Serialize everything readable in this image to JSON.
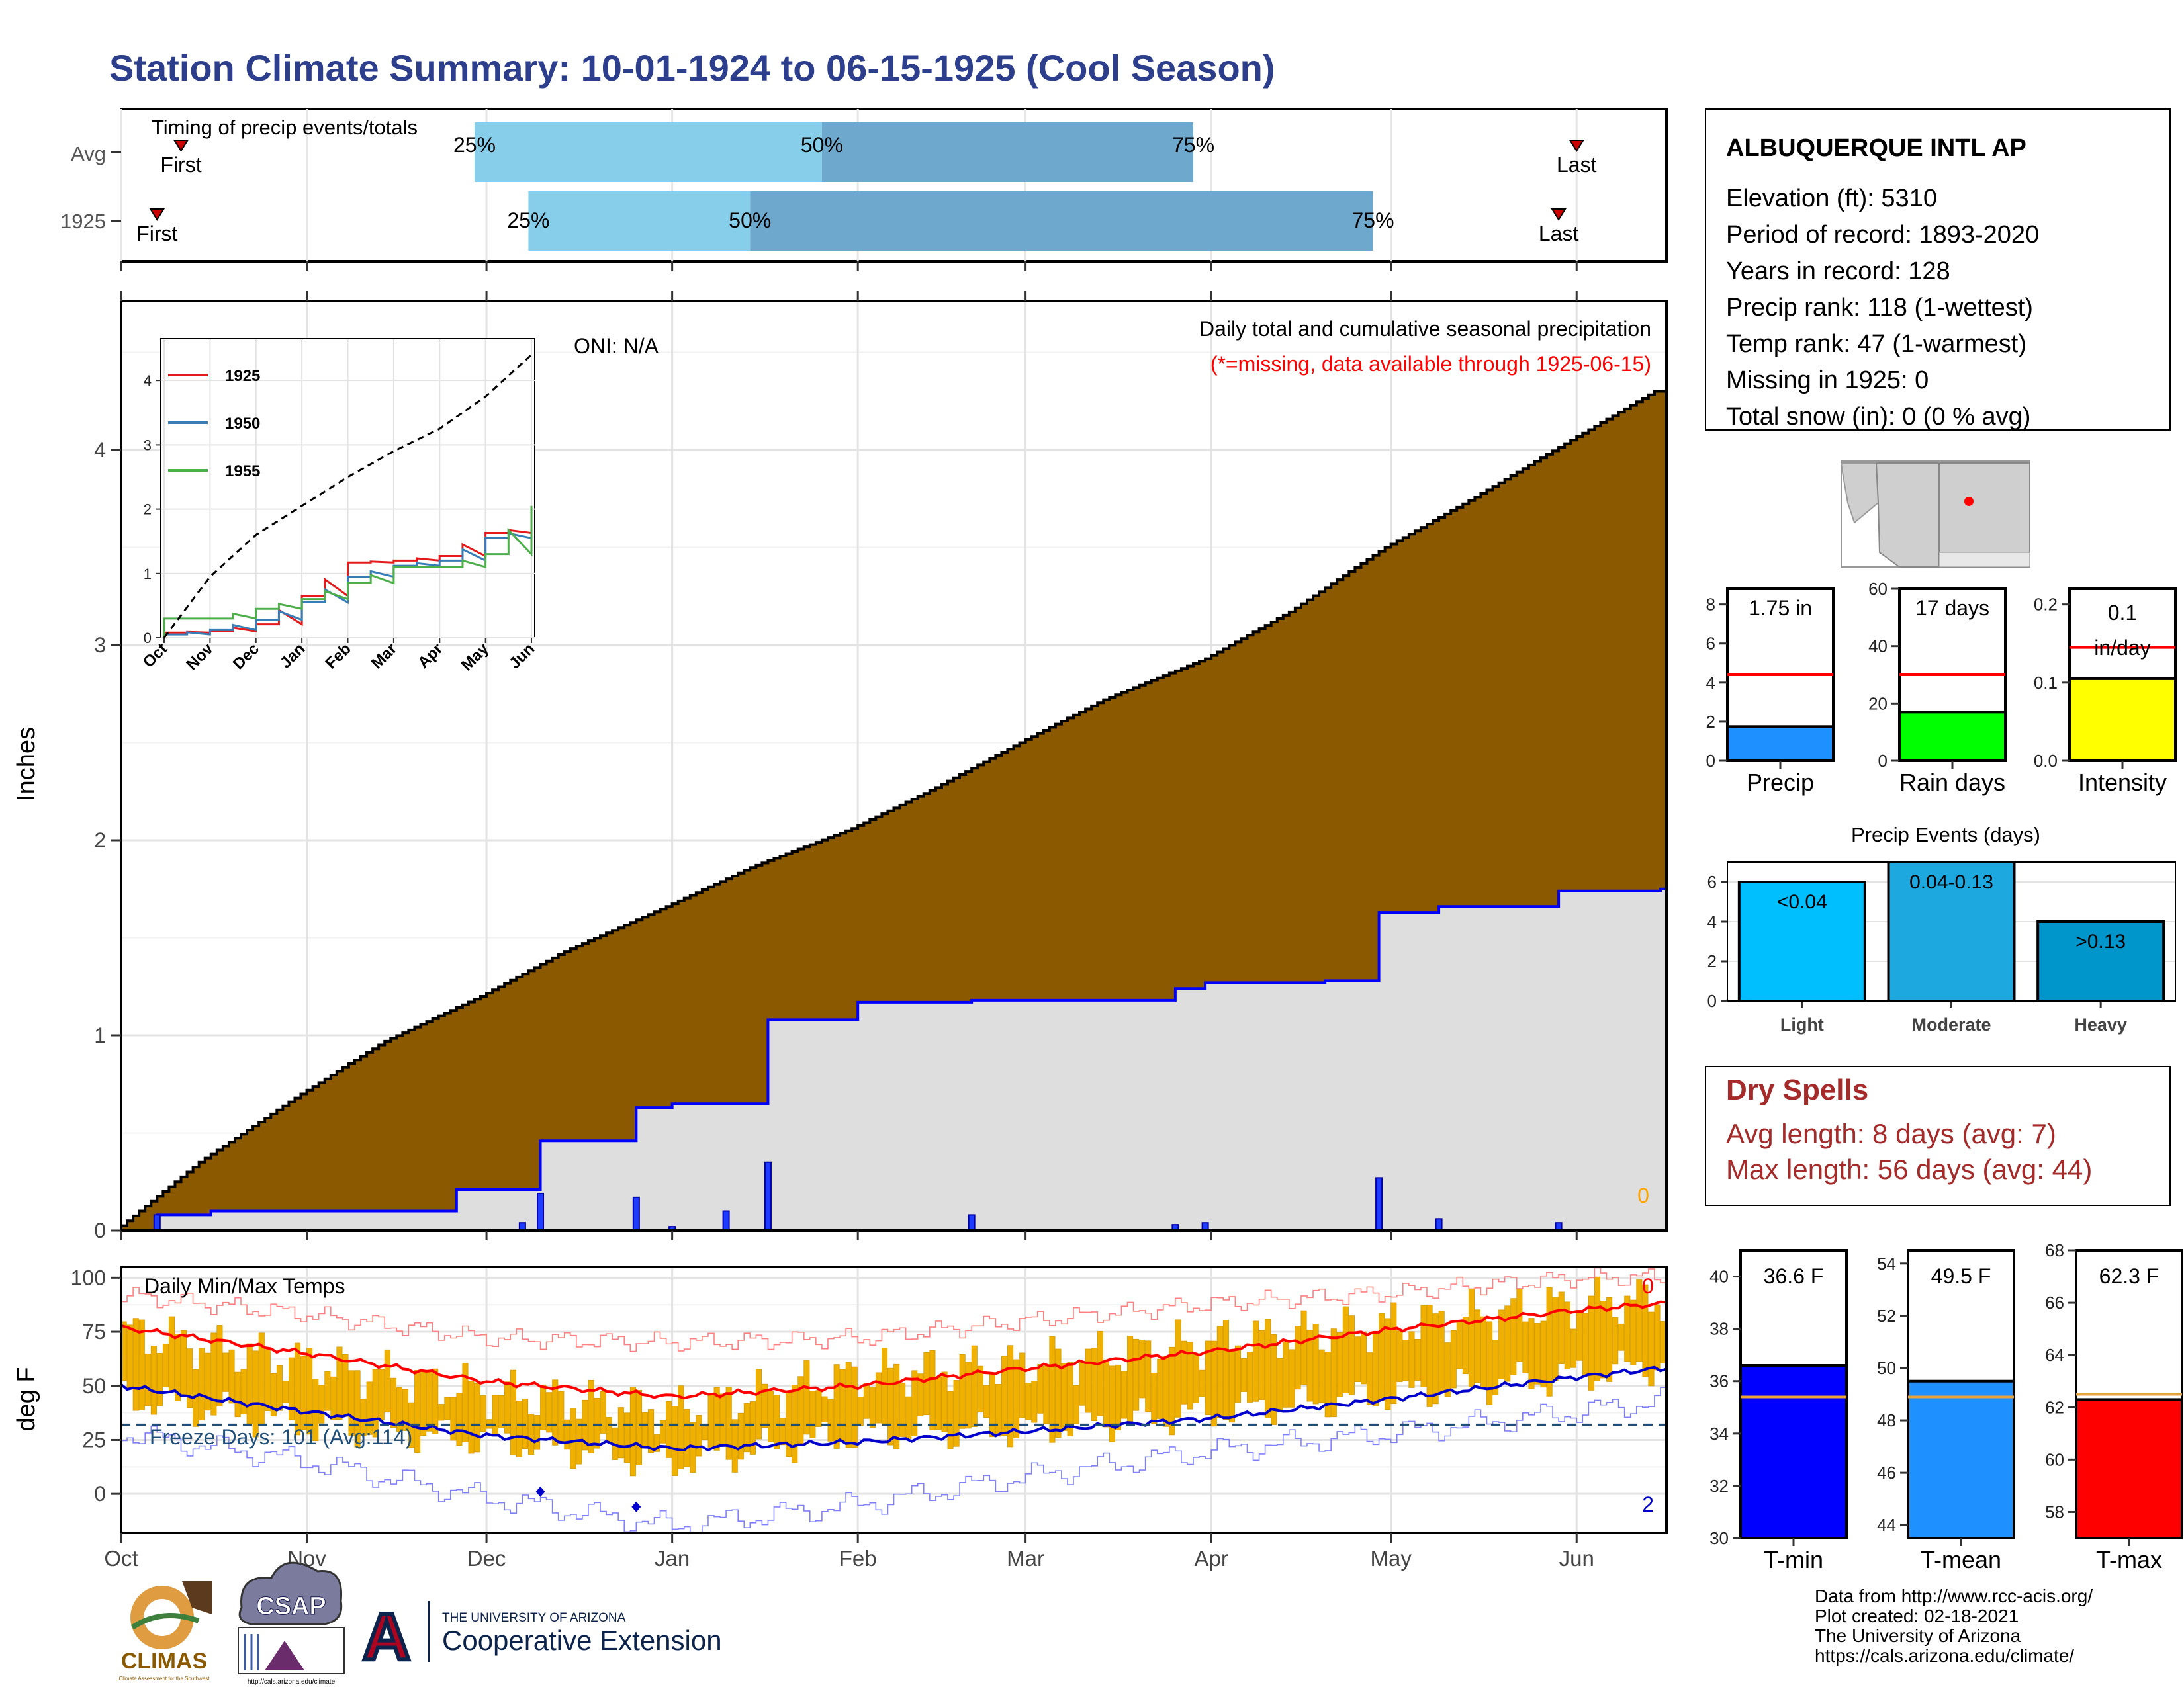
{
  "title": "Station Climate Summary: 10-01-1924 to 06-15-1925 (Cool Season)",
  "colors": {
    "title": "#2c3e8c",
    "cum_fill": "#8b5a00",
    "avg_fill": "#dedede",
    "avg_line": "#0000ff",
    "timing_light": "#87ceeb",
    "timing_dark": "#6fa8cd",
    "temp_bars": "#f0b000",
    "tmax_line": "#ff0000",
    "tmin_line": "#0000cc",
    "freeze_line": "#1f4e79",
    "dry_spells": "#a52a2a"
  },
  "timing_panel": {
    "title": "Timing of precip events/totals",
    "rows": [
      {
        "label": "Avg",
        "first_label": "First",
        "last_label": "Last",
        "q25_label": "25%",
        "q50_label": "50%",
        "q75_label": "75%"
      },
      {
        "label": "1925",
        "first_label": "First",
        "last_label": "Last",
        "q25_label": "25%",
        "q50_label": "50%",
        "q75_label": "75%"
      }
    ]
  },
  "station": {
    "name": "ALBUQUERQUE INTL AP",
    "lines": [
      "Elevation (ft): 5310",
      "Period of record: 1893-2020",
      "Years in record: 128",
      "Precip rank: 118 (1-wettest)",
      "Temp rank: 47 (1-warmest)",
      "Missing in 1925: 0",
      "Total snow (in): 0 (0 % avg)"
    ]
  },
  "precip_panel": {
    "title": "Daily total and cumulative seasonal precipitation",
    "subtitle": "(*=missing, data available through 1925-06-15)",
    "oni": "ONI: N/A",
    "ylabel": "Inches",
    "yticks": [
      "0",
      "1",
      "2",
      "3",
      "4"
    ],
    "zero_count": "0",
    "months": [
      "Oct",
      "Nov",
      "Dec",
      "Jan",
      "Feb",
      "Mar",
      "Apr",
      "May",
      "Jun"
    ]
  },
  "inset": {
    "yticks": [
      "0",
      "1",
      "2",
      "3",
      "4"
    ],
    "months": [
      "Oct",
      "Nov",
      "Dec",
      "Jan",
      "Feb",
      "Mar",
      "Apr",
      "May",
      "Jun"
    ],
    "legend": [
      "1925",
      "1950",
      "1955"
    ]
  },
  "temp_panel": {
    "title": "Daily Min/Max Temps",
    "ylabel": "deg F",
    "yticks": [
      "0",
      "25",
      "50",
      "75",
      "100"
    ],
    "freeze_label": "Freeze Days: 101 (Avg:114)",
    "record_high_count": "0",
    "record_low_count": "2",
    "months": [
      "Oct",
      "Nov",
      "Dec",
      "Jan",
      "Feb",
      "Mar",
      "Apr",
      "May",
      "Jun"
    ]
  },
  "mini_precip": [
    {
      "label": "Precip",
      "value_text": "1.75 in",
      "yticks": [
        "0",
        "2",
        "4",
        "6",
        "8"
      ]
    },
    {
      "label": "Rain days",
      "value_text": "17 days",
      "yticks": [
        "0",
        "20",
        "40",
        "60"
      ]
    },
    {
      "label": "Intensity",
      "value_text_1": "0.1",
      "value_text_2": "in/day",
      "yticks": [
        "0.0",
        "0.1",
        "0.2"
      ]
    }
  ],
  "events": {
    "title": "Precip Events (days)",
    "yticks": [
      "0",
      "2",
      "4",
      "6"
    ],
    "bars": [
      {
        "label": "Light",
        "value_text": "<0.04"
      },
      {
        "label": "Moderate",
        "value_text": "0.04-0.13"
      },
      {
        "label": "Heavy",
        "value_text": ">0.13"
      }
    ]
  },
  "dry_spells": {
    "title": "Dry Spells",
    "line1": "Avg length: 8 days (avg: 7)",
    "line2": "Max length: 56 days (avg: 44)"
  },
  "mini_temps": [
    {
      "label": "T-min",
      "value_text": "36.6 F",
      "yticks": [
        "30",
        "32",
        "34",
        "36",
        "38",
        "40"
      ]
    },
    {
      "label": "T-mean",
      "value_text": "49.5 F",
      "yticks": [
        "44",
        "46",
        "48",
        "50",
        "52",
        "54"
      ]
    },
    {
      "label": "T-max",
      "value_text": "62.3 F",
      "yticks": [
        "58",
        "60",
        "62",
        "64",
        "66",
        "68"
      ]
    }
  ],
  "footer": {
    "lines": [
      "Data from http://www.rcc-acis.org/",
      "Plot created: 02-18-2021",
      "The University of Arizona",
      "https://cals.arizona.edu/climate/"
    ],
    "logos": {
      "climas": "CLIMAS",
      "climas_sub": "Climate Assessment for the Southwest",
      "csap": "CSAP",
      "csap_url": "http://cals.arizona.edu/climate",
      "ua_letter": "A",
      "ua_top": "THE UNIVERSITY OF ARIZONA",
      "ua_bottom": "Cooperative Extension"
    }
  },
  "chart_data": [
    {
      "type": "bar",
      "name": "timing",
      "xlabel": "",
      "ylabel": "",
      "categories": [
        "Avg",
        "1925"
      ],
      "series": [
        {
          "name": "First",
          "values": [
            "1924-10-11",
            "1924-10-07"
          ]
        },
        {
          "name": "25%",
          "values": [
            "1924-11-29",
            "1924-12-08"
          ]
        },
        {
          "name": "50%",
          "values": [
            "1925-01-26",
            "1925-01-14"
          ]
        },
        {
          "name": "75%",
          "values": [
            "1925-03-29",
            "1925-04-28"
          ]
        },
        {
          "name": "Last",
          "values": [
            "1925-06-01",
            "1925-05-29"
          ]
        }
      ]
    },
    {
      "type": "area",
      "name": "cumulative precipitation",
      "xlabel": "",
      "ylabel": "Inches",
      "ylim": [
        0,
        4.6
      ],
      "series": [
        {
          "values_x": [
            "1924-10-01",
            "1924-10-15",
            "1924-11-01",
            "1924-11-15",
            "1924-12-01",
            "1924-12-15",
            "1925-01-01",
            "1925-01-15",
            "1925-02-01",
            "1925-02-15",
            "1925-03-01",
            "1925-03-15",
            "1925-04-01",
            "1925-04-15",
            "1925-05-01",
            "1925-05-15",
            "1925-06-01",
            "1925-06-15"
          ],
          "values": [
            0.0,
            0.35,
            0.7,
            0.97,
            1.2,
            1.43,
            1.66,
            1.86,
            2.06,
            2.27,
            2.5,
            2.72,
            2.93,
            3.17,
            3.5,
            3.74,
            4.05,
            4.3
          ]
        },
        {
          "values_x": [
            "1924-10-01",
            "1924-10-07",
            "1924-10-16",
            "1924-11-26",
            "1924-12-10",
            "1924-12-26",
            "1925-01-01",
            "1925-01-17",
            "1925-02-01",
            "1925-02-20",
            "1925-03-26",
            "1925-03-31",
            "1925-04-20",
            "1925-04-29",
            "1925-05-09",
            "1925-05-29",
            "1925-06-15"
          ],
          "values": [
            0.0,
            0.08,
            0.1,
            0.21,
            0.46,
            0.63,
            0.65,
            1.08,
            1.17,
            1.18,
            1.24,
            1.27,
            1.28,
            1.63,
            1.66,
            1.74,
            1.75
          ]
        }
      ]
    },
    {
      "type": "bar",
      "name": "daily precipitation",
      "xlabel": "",
      "ylabel": "",
      "x": [
        "1924-10-07",
        "1924-12-07",
        "1924-12-10",
        "1924-12-26",
        "1925-01-01",
        "1925-01-10",
        "1925-01-17",
        "1925-02-20",
        "1925-03-26",
        "1925-03-31",
        "1925-04-29",
        "1925-05-09",
        "1925-05-29"
      ],
      "values": [
        0.08,
        0.04,
        0.19,
        0.17,
        0.02,
        0.1,
        0.35,
        0.08,
        0.03,
        0.04,
        0.27,
        0.06,
        0.04
      ]
    },
    {
      "type": "line",
      "name": "inset seasons",
      "xlabel": "",
      "ylabel": "",
      "ylim": [
        0,
        4.4
      ],
      "x": [
        "Oct",
        "Nov",
        "Dec",
        "Jan",
        "Feb",
        "Mar",
        "Apr",
        "May",
        "Jun"
      ],
      "series": [
        {
          "name": "1925",
          "values": [
            0.08,
            0.1,
            0.21,
            0.65,
            1.17,
            1.2,
            1.27,
            1.63,
            1.72
          ]
        },
        {
          "name": "1950",
          "values": [
            0.05,
            0.12,
            0.28,
            0.55,
            0.95,
            1.12,
            1.2,
            1.55,
            1.7
          ]
        },
        {
          "name": "1955",
          "values": [
            0.3,
            0.3,
            0.45,
            0.6,
            0.85,
            1.1,
            1.1,
            1.3,
            2.05
          ]
        },
        {
          "name": "",
          "values": [
            0.0,
            0.95,
            1.6,
            2.05,
            2.5,
            2.9,
            3.25,
            3.75,
            4.4
          ]
        }
      ]
    },
    {
      "type": "line",
      "name": "daily temps",
      "xlabel": "",
      "ylabel": "deg F",
      "ylim": [
        -18,
        105
      ],
      "x": [
        "1924-10-01",
        "1924-11-01",
        "1924-12-01",
        "1925-01-01",
        "1925-02-01",
        "1925-03-01",
        "1925-04-01",
        "1925-05-01",
        "1925-06-01",
        "1925-06-15"
      ],
      "series": [
        {
          "name": "Avg max",
          "values": [
            77,
            65,
            52,
            45,
            50,
            58,
            66,
            76,
            85,
            88
          ]
        },
        {
          "name": "Avg min",
          "values": [
            50,
            38,
            27,
            21,
            24,
            29,
            35,
            44,
            54,
            58
          ]
        },
        {
          "name": "Record high",
          "values": [
            92,
            83,
            72,
            70,
            72,
            80,
            88,
            93,
            100,
            100
          ]
        },
        {
          "name": "Record low",
          "values": [
            28,
            15,
            -2,
            -15,
            -5,
            8,
            20,
            28,
            38,
            43
          ]
        },
        {
          "name": "1925 max",
          "values": [
            75,
            60,
            47,
            38,
            55,
            60,
            70,
            78,
            88,
            90
          ]
        },
        {
          "name": "1925 min",
          "values": [
            45,
            32,
            25,
            15,
            28,
            30,
            38,
            46,
            55,
            60
          ]
        }
      ],
      "freeze_line": 32
    },
    {
      "type": "bar",
      "name": "Precip",
      "categories": [
        "Precip"
      ],
      "values": [
        1.75
      ],
      "ylim": [
        0,
        8.8
      ],
      "avg": 4.4
    },
    {
      "type": "bar",
      "name": "Rain days",
      "categories": [
        "Rain days"
      ],
      "values": [
        17
      ],
      "ylim": [
        0,
        60
      ],
      "avg": 30
    },
    {
      "type": "bar",
      "name": "Intensity",
      "categories": [
        "Intensity"
      ],
      "values": [
        0.105
      ],
      "ylim": [
        0,
        0.22
      ],
      "avg": 0.145
    },
    {
      "type": "bar",
      "name": "Precip Events",
      "categories": [
        "Light",
        "Moderate",
        "Heavy"
      ],
      "values": [
        6,
        7,
        4
      ],
      "ylim": [
        0,
        7
      ]
    },
    {
      "type": "bar",
      "name": "T-min",
      "categories": [
        "T-min"
      ],
      "values": [
        36.6
      ],
      "ylim": [
        30,
        41
      ],
      "avg": 35.4
    },
    {
      "type": "bar",
      "name": "T-mean",
      "categories": [
        "T-mean"
      ],
      "values": [
        49.5
      ],
      "ylim": [
        43.5,
        54.5
      ],
      "avg": 48.9
    },
    {
      "type": "bar",
      "name": "T-max",
      "categories": [
        "T-max"
      ],
      "values": [
        62.3
      ],
      "ylim": [
        57,
        68
      ],
      "avg": 62.5
    }
  ]
}
